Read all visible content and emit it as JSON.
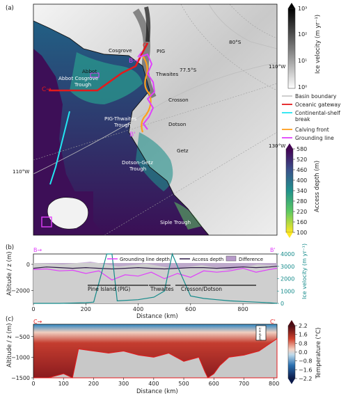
{
  "panel_a": {
    "label": "(a)",
    "places": {
      "cosgrove": "Cosgrove",
      "abbot": "Abbot",
      "pig": "PIG",
      "thwaites": "Thwaites",
      "crosson": "Crosson",
      "dotson": "Dotson",
      "getz": "Getz",
      "abbot_cosgrove_trough": "Abbot Cosgrove",
      "pig_thwaites_trough": "PIG-Thwaites",
      "dotson_getz_trough": "Dotson-Getz",
      "trough_word": "Trough",
      "siple_trough": "Siple Trough"
    },
    "graticule": {
      "lat_77_5": "77.5°S",
      "lat_80": "80°S",
      "lon_110w": "110°W",
      "lon_130w": "130°W"
    },
    "markers": {
      "c_start": "C→",
      "c_end": "C'",
      "b_start": "B→",
      "b_end": "B'"
    }
  },
  "colorbar_velocity": {
    "label": "Ice velocity (m yr⁻¹)",
    "ticks": [
      "10⁰",
      "10¹",
      "10²",
      "10³"
    ],
    "colormap": "greys"
  },
  "legend": {
    "basin_boundary": "Basin boundary",
    "oceanic_gateway": "Oceanic gateway",
    "continental_shelf_line1": "Continental-shelf",
    "continental_shelf_line2": "break",
    "calving_front": "Calving front",
    "grounding_line": "Grounding line",
    "colors": {
      "basin_boundary": "#bdbdbd",
      "oceanic_gateway": "#e31a1c",
      "continental_shelf_break": "#22e6f2",
      "calving_front": "#ff9f1c",
      "grounding_line": "#e040fb"
    }
  },
  "colorbar_depth": {
    "label": "Access depth (m)",
    "ticks": [
      "100",
      "160",
      "220",
      "280",
      "340",
      "400",
      "460",
      "520",
      "580"
    ],
    "colormap": "viridis_r"
  },
  "panel_b": {
    "label": "(b)",
    "ylabel": "Altitude / z (m)",
    "y2label": "Ice velocity (m yr⁻¹)",
    "xlabel": "Distance (km)",
    "legend": {
      "grounding_line_depth": "Grounding line depth",
      "access_depth": "Access depth",
      "difference": "Difference"
    },
    "annotations": {
      "pine_island": "Pine Island (PIG)",
      "thwaites": "Thwaites",
      "crosson_dotson": "Crosson/Dotson"
    },
    "markers": {
      "b_start": "B→",
      "b_end": "B'"
    },
    "y2_color": "#138a8a"
  },
  "panel_c": {
    "label": "(c)",
    "ylabel": "Altitude / z (m)",
    "xlabel": "Distance (km)",
    "annotations": {
      "ice_shelf": "ice shelf"
    },
    "markers": {
      "c_start": "C→",
      "c_end": "C'"
    }
  },
  "colorbar_temperature": {
    "label": "Temperature (°C)",
    "ticks": [
      "2.2",
      "1.6",
      "0.8",
      "0.0",
      "−0.8",
      "−1.6",
      "−2.2"
    ],
    "colormap": "RdBu_r"
  },
  "chart_data": [
    {
      "type": "line",
      "panel": "b",
      "xlabel": "Distance (km)",
      "ylabel": "Altitude / z (m)",
      "y2label": "Ice velocity (m yr⁻¹)",
      "xlim": [
        0,
        930
      ],
      "ylim": [
        -3000,
        800
      ],
      "y2lim": [
        0,
        4000
      ],
      "x_ticks": [
        0,
        200,
        400,
        600,
        800
      ],
      "y_ticks": [
        0,
        -2000
      ],
      "y2_ticks": [
        0,
        1000,
        2000,
        3000,
        4000
      ],
      "series": [
        {
          "name": "Grounding line depth",
          "color": "#e040fb",
          "x": [
            0,
            50,
            100,
            150,
            200,
            250,
            300,
            350,
            400,
            450,
            500,
            550,
            600,
            650,
            700,
            750,
            800,
            850,
            900,
            930
          ],
          "values": [
            -400,
            -350,
            -500,
            -450,
            -700,
            -500,
            -1200,
            -800,
            -900,
            -600,
            -1100,
            -700,
            -1000,
            -500,
            -600,
            -500,
            -300,
            -600,
            -400,
            -300
          ]
        },
        {
          "name": "Access depth",
          "color": "#2e1a47",
          "x": [
            0,
            50,
            100,
            150,
            200,
            250,
            300,
            350,
            400,
            450,
            500,
            550,
            600,
            650,
            700,
            750,
            800,
            850,
            900,
            930
          ],
          "values": [
            -300,
            -200,
            -250,
            -300,
            -250,
            -300,
            -350,
            -300,
            -250,
            -300,
            -350,
            -300,
            -250,
            -250,
            -300,
            -250,
            -200,
            -250,
            -200,
            -150
          ]
        },
        {
          "name": "Ice velocity",
          "axis": "y2",
          "color": "#138a8a",
          "x": [
            0,
            100,
            200,
            230,
            280,
            300,
            320,
            400,
            460,
            500,
            530,
            550,
            600,
            650,
            700,
            750,
            800,
            850,
            900,
            930
          ],
          "values": [
            0,
            0,
            50,
            100,
            4000,
            4000,
            200,
            300,
            500,
            1000,
            4000,
            3000,
            600,
            400,
            300,
            200,
            150,
            100,
            50,
            0
          ]
        }
      ],
      "fill_series": [
        {
          "name": "Difference",
          "color": "#b79ac9"
        }
      ]
    },
    {
      "type": "area",
      "panel": "c",
      "xlabel": "Distance (km)",
      "ylabel": "Altitude / z (m)",
      "xlim": [
        0,
        810
      ],
      "ylim": [
        -1500,
        -200
      ],
      "x_ticks": [
        0,
        100,
        200,
        300,
        400,
        500,
        600,
        700,
        800
      ],
      "y_ticks": [
        -500,
        -1000,
        -1500
      ],
      "series": [
        {
          "name": "Bed",
          "color": "#c8c8c8",
          "x": [
            0,
            50,
            100,
            130,
            150,
            200,
            250,
            300,
            350,
            400,
            450,
            500,
            550,
            570,
            580,
            600,
            620,
            650,
            700,
            750,
            800,
            810
          ],
          "values": [
            -1500,
            -1500,
            -1400,
            -1500,
            -800,
            -850,
            -900,
            -850,
            -950,
            -1000,
            -900,
            -1100,
            -1000,
            -1350,
            -1500,
            -1400,
            -1200,
            -1000,
            -950,
            -850,
            -600,
            -550
          ]
        }
      ]
    }
  ]
}
